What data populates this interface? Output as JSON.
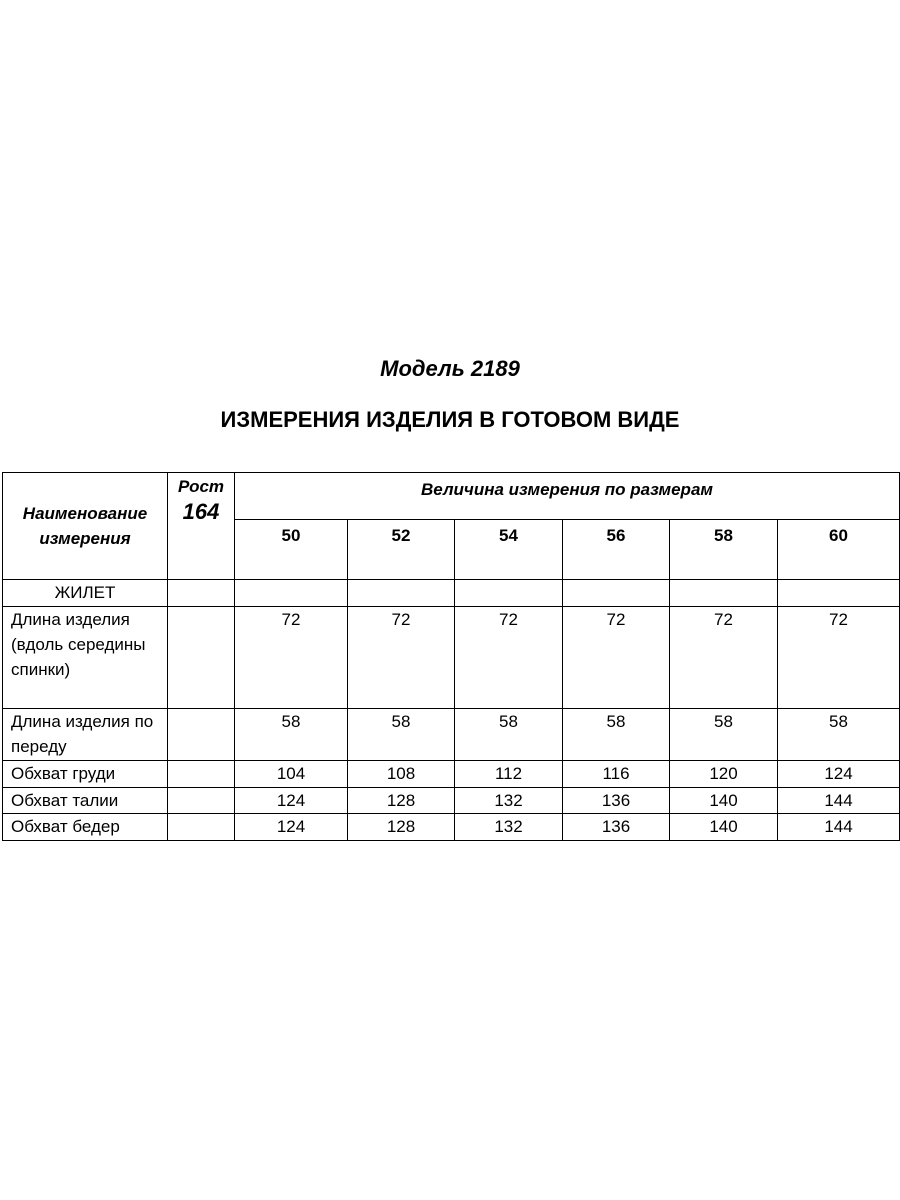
{
  "model_title": "Модель 2189",
  "doc_title": "ИЗМЕРЕНИЯ ИЗДЕЛИЯ В ГОТОВОМ ВИДЕ",
  "table": {
    "header_name": "Наименование измерения",
    "header_rost_label": "Рост",
    "header_rost_value": "164",
    "header_sizes_label": "Величина измерения по размерам",
    "sizes": [
      "50",
      "52",
      "54",
      "56",
      "58",
      "60"
    ],
    "section": "ЖИЛЕТ",
    "rows": [
      {
        "label": "Длина изделия (вдоль середины спинки)",
        "values": [
          "72",
          "72",
          "72",
          "72",
          "72",
          "72"
        ]
      },
      {
        "label": "Длина изделия по переду",
        "values": [
          "58",
          "58",
          "58",
          "58",
          "58",
          "58"
        ]
      },
      {
        "label": "Обхват груди",
        "values": [
          "104",
          "108",
          "112",
          "116",
          "120",
          "124"
        ]
      },
      {
        "label": "Обхват талии",
        "values": [
          "124",
          "128",
          "132",
          "136",
          "140",
          "144"
        ]
      },
      {
        "label": "Обхват бедер",
        "values": [
          "124",
          "128",
          "132",
          "136",
          "140",
          "144"
        ]
      }
    ]
  }
}
